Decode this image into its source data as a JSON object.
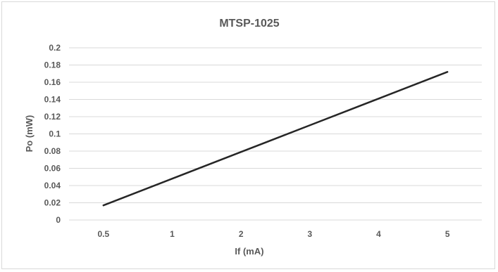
{
  "chart_data": {
    "type": "line",
    "title": "MTSP-1025",
    "xlabel": "If (mA)",
    "ylabel": "Po (mW)",
    "categories": [
      "0.5",
      "1",
      "2",
      "3",
      "4",
      "5"
    ],
    "series": [
      {
        "values": [
          0.017,
          0.048,
          0.079,
          0.11,
          0.141,
          0.172
        ]
      }
    ],
    "ylim": [
      0,
      0.2
    ],
    "yticks": [
      "0",
      "0.02",
      "0.04",
      "0.06",
      "0.08",
      "0.1",
      "0.12",
      "0.14",
      "0.16",
      "0.18",
      "0.2"
    ],
    "grid": true,
    "legend": "none",
    "line_color": "#262626"
  }
}
